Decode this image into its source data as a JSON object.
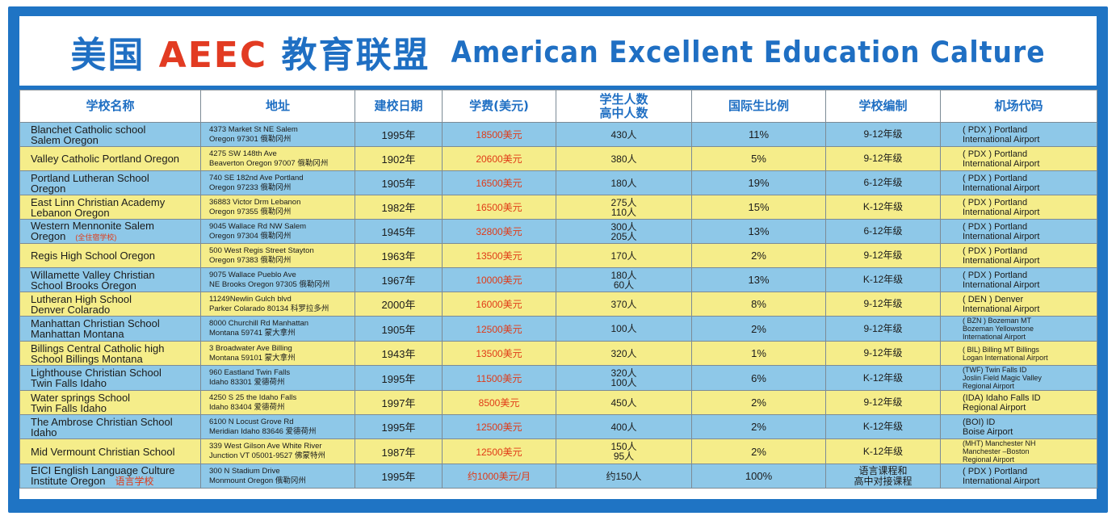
{
  "title": {
    "cn_prefix": "美国",
    "cn_brand": "AEEC",
    "cn_suffix": "教育联盟",
    "en": "American Excellent Education Calture"
  },
  "headers": [
    "学校名称",
    "地址",
    "建校日期",
    "学费(美元)",
    "学生人数\n高中人数",
    "国际生比例",
    "学校编制",
    "机场代码"
  ],
  "rows": [
    {
      "name": [
        "Blanchet Catholic school",
        "Salem Oregon"
      ],
      "address": [
        "4373 Market St NE Salem",
        "Oregon  97301  俄勒冈州"
      ],
      "year": "1995年",
      "fee": "18500美元",
      "students": [
        "430人"
      ],
      "ratio": "11%",
      "grade": [
        "9-12年级"
      ],
      "airport": [
        "( PDX ) Portland",
        "International Airport"
      ]
    },
    {
      "name": [
        "Valley Catholic Portland Oregon"
      ],
      "address": [
        "4275 SW 148th  Ave",
        "Beaverton Oregon  97007 俄勒冈州"
      ],
      "year": "1902年",
      "fee": "20600美元",
      "students": [
        "380人"
      ],
      "ratio": "5%",
      "grade": [
        "9-12年级"
      ],
      "airport": [
        "( PDX ) Portland",
        "International Airport"
      ]
    },
    {
      "name": [
        "Portland Lutheran School",
        "Oregon"
      ],
      "address": [
        "740 SE 182nd Ave Portland",
        "Oregon  97233  俄勒冈州"
      ],
      "year": "1905年",
      "fee": "16500美元",
      "students": [
        "180人"
      ],
      "ratio": "19%",
      "grade": [
        "6-12年级"
      ],
      "airport": [
        "( PDX ) Portland",
        "International Airport"
      ]
    },
    {
      "name": [
        "East Linn Christian Academy",
        "Lebanon Oregon"
      ],
      "address": [
        "36883 Victor Drm Lebanon",
        "Oregon  97355  俄勒冈州"
      ],
      "year": "1982年",
      "fee": "16500美元",
      "students": [
        "275人",
        "110人"
      ],
      "ratio": "15%",
      "grade": [
        "K-12年级"
      ],
      "airport": [
        "( PDX ) Portland",
        "International Airport"
      ]
    },
    {
      "name": [
        "Western Mennonite  Salem",
        "Oregon"
      ],
      "name_note": "(全住宿学校)",
      "address": [
        "9045 Wallace Rd NW Salem",
        "Oregon  97304 俄勒冈州"
      ],
      "year": "1945年",
      "fee": "32800美元",
      "students": [
        "300人",
        "205人"
      ],
      "ratio": "13%",
      "grade": [
        "6-12年级"
      ],
      "airport": [
        "( PDX ) Portland",
        "International Airport"
      ]
    },
    {
      "name": [
        "Regis High School Oregon"
      ],
      "address": [
        "500 West Regis Street Stayton",
        "Oregon 97383  俄勒冈州"
      ],
      "year": "1963年",
      "fee": "13500美元",
      "students": [
        "170人"
      ],
      "ratio": "2%",
      "grade": [
        "9-12年级"
      ],
      "airport": [
        "( PDX ) Portland",
        "International Airport"
      ]
    },
    {
      "name": [
        "Willamette Valley Christian",
        "School Brooks  Oregon"
      ],
      "address": [
        "9075 Wallace Pueblo Ave",
        "NE Brooks Oregon 97305  俄勒冈州"
      ],
      "year": "1967年",
      "fee": "10000美元",
      "students": [
        "180人",
        "60人"
      ],
      "ratio": "13%",
      "grade": [
        "K-12年级"
      ],
      "airport": [
        "( PDX ) Portland",
        "International Airport"
      ]
    },
    {
      "name": [
        "Lutheran High School",
        "Denver Colarado"
      ],
      "address": [
        "11249Newlin Gulch blvd",
        "Parker Colarado  80134  科罗拉多州"
      ],
      "year": "2000年",
      "fee": "16000美元",
      "students": [
        "370人"
      ],
      "ratio": "8%",
      "grade": [
        "9-12年级"
      ],
      "airport": [
        "( DEN ) Denver",
        "International Airport"
      ]
    },
    {
      "name": [
        "Manhattan Christian School",
        "Manhattan Montana"
      ],
      "address": [
        "8000 Churchill Rd Manhattan",
        "Montana  59741  蒙大拿州"
      ],
      "year": "1905年",
      "fee": "12500美元",
      "students": [
        "100人"
      ],
      "ratio": "2%",
      "grade": [
        "9-12年级"
      ],
      "airport": [
        "( BZN ) Bozeman MT",
        "Bozeman Yellowstone",
        "International Airport"
      ],
      "airport_small": true
    },
    {
      "name": [
        "Billings Central Catholic high",
        "School  Billings  Montana"
      ],
      "address": [
        "3 Broadwater  Ave Billing",
        "Montana  59101  蒙大拿州"
      ],
      "year": "1943年",
      "fee": "13500美元",
      "students": [
        "320人"
      ],
      "ratio": "1%",
      "grade": [
        "9-12年级"
      ],
      "airport": [
        "( BIL) Billing MT Billings",
        "Logan International Airport"
      ],
      "airport_small": true
    },
    {
      "name": [
        "Lighthouse Christian School",
        "Twin Falls Idaho"
      ],
      "address": [
        "960 Eastland Twin Falls",
        "Idaho  83301  爱德荷州"
      ],
      "year": "1995年",
      "fee": "11500美元",
      "students": [
        "320人",
        "100人"
      ],
      "ratio": "6%",
      "grade": [
        "K-12年级"
      ],
      "airport": [
        "(TWF)  Twin Falls ID",
        "Joslin Field Magic Valley",
        "Regional Airport"
      ],
      "airport_small": true
    },
    {
      "name": [
        "Water springs School",
        "Twin  Falls Idaho"
      ],
      "address": [
        "4250 S 25 the Idaho Falls",
        "Idaho 83404  爱德荷州"
      ],
      "year": "1997年",
      "fee": "8500美元",
      "students": [
        "450人"
      ],
      "ratio": "2%",
      "grade": [
        "9-12年级"
      ],
      "airport": [
        "(IDA)   Idaho Falls ID",
        "Regional Airport"
      ]
    },
    {
      "name": [
        "The Ambrose Christian School",
        "Idaho"
      ],
      "address": [
        "6100 N Locust Grove Rd",
        "Meridian  Idaho  83646  爱德荷州"
      ],
      "year": "1995年",
      "fee": "12500美元",
      "students": [
        "400人"
      ],
      "ratio": "2%",
      "grade": [
        "K-12年级"
      ],
      "airport": [
        "(BOI) ID",
        "Boise Airport"
      ]
    },
    {
      "name": [
        "Mid Vermount Christian School"
      ],
      "address": [
        "339 West Gilson Ave White River",
        "Junction VT  05001-9527  佛蒙特州"
      ],
      "year": "1987年",
      "fee": "12500美元",
      "students": [
        "150人",
        "95人"
      ],
      "ratio": "2%",
      "grade": [
        "K-12年级"
      ],
      "airport": [
        "(MHT) Manchester NH",
        "Manchester –Boston",
        "Regional Airport"
      ],
      "airport_small": true
    },
    {
      "name": [
        "EICI English Language Culture",
        "Institute Oregon"
      ],
      "name_note2": "语言学校",
      "address": [
        "300 N Stadium Drive",
        "Monmount  Oregon   俄勒冈州"
      ],
      "year": "1995年",
      "fee": "约1000美元/月",
      "students": [
        "约150人"
      ],
      "ratio": "100%",
      "grade": [
        "语言课程和",
        "高中对接课程"
      ],
      "airport": [
        "( PDX ) Portland",
        "International Airport"
      ]
    }
  ]
}
